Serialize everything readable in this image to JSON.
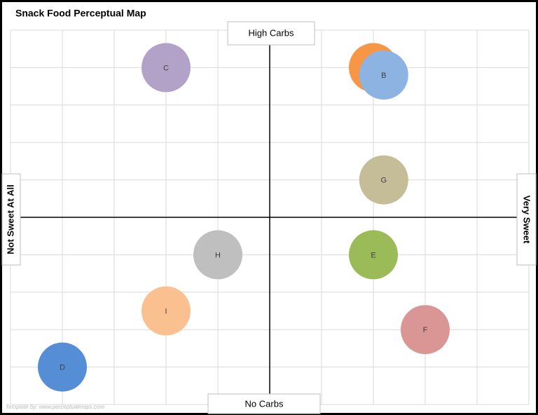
{
  "chart_data": {
    "type": "bubble",
    "title": "Snack Food Perceptual Map",
    "y_axis_top": "High Carbs",
    "y_axis_bottom": "No Carbs",
    "x_axis_left": "Not Sweet At All",
    "x_axis_right": "Very Sweet",
    "watermark": "Template by: www.perceptualmaps.com",
    "xlim": [
      -5,
      5
    ],
    "ylim": [
      -5,
      5
    ],
    "xticks": [
      -5,
      -4,
      -3,
      -2,
      -1,
      0,
      1,
      2,
      3,
      4,
      5
    ],
    "yticks": [
      -5,
      -4,
      -3,
      -2,
      -1,
      0,
      1,
      2,
      3,
      4,
      5
    ],
    "grid": true,
    "series": [
      {
        "name": "C",
        "color": "#b3a2c7",
        "x": [
          -2
        ],
        "values": [
          4
        ]
      },
      {
        "name": "A",
        "color": "#f79646",
        "x": [
          2
        ],
        "values": [
          4
        ]
      },
      {
        "name": "B",
        "color": "#8db3e2",
        "x": [
          2.2
        ],
        "values": [
          3.8
        ]
      },
      {
        "name": "G",
        "color": "#c4bd97",
        "x": [
          2.2
        ],
        "values": [
          1
        ]
      },
      {
        "name": "H",
        "color": "#bfbfbf",
        "x": [
          -1
        ],
        "values": [
          -1
        ]
      },
      {
        "name": "E",
        "color": "#9bbb59",
        "x": [
          2
        ],
        "values": [
          -1
        ]
      },
      {
        "name": "I",
        "color": "#fac090",
        "x": [
          -2
        ],
        "values": [
          -2.5
        ]
      },
      {
        "name": "F",
        "color": "#d99694",
        "x": [
          3
        ],
        "values": [
          -3
        ]
      },
      {
        "name": "D",
        "color": "#558ed5",
        "x": [
          -4
        ],
        "values": [
          -4
        ]
      }
    ]
  }
}
